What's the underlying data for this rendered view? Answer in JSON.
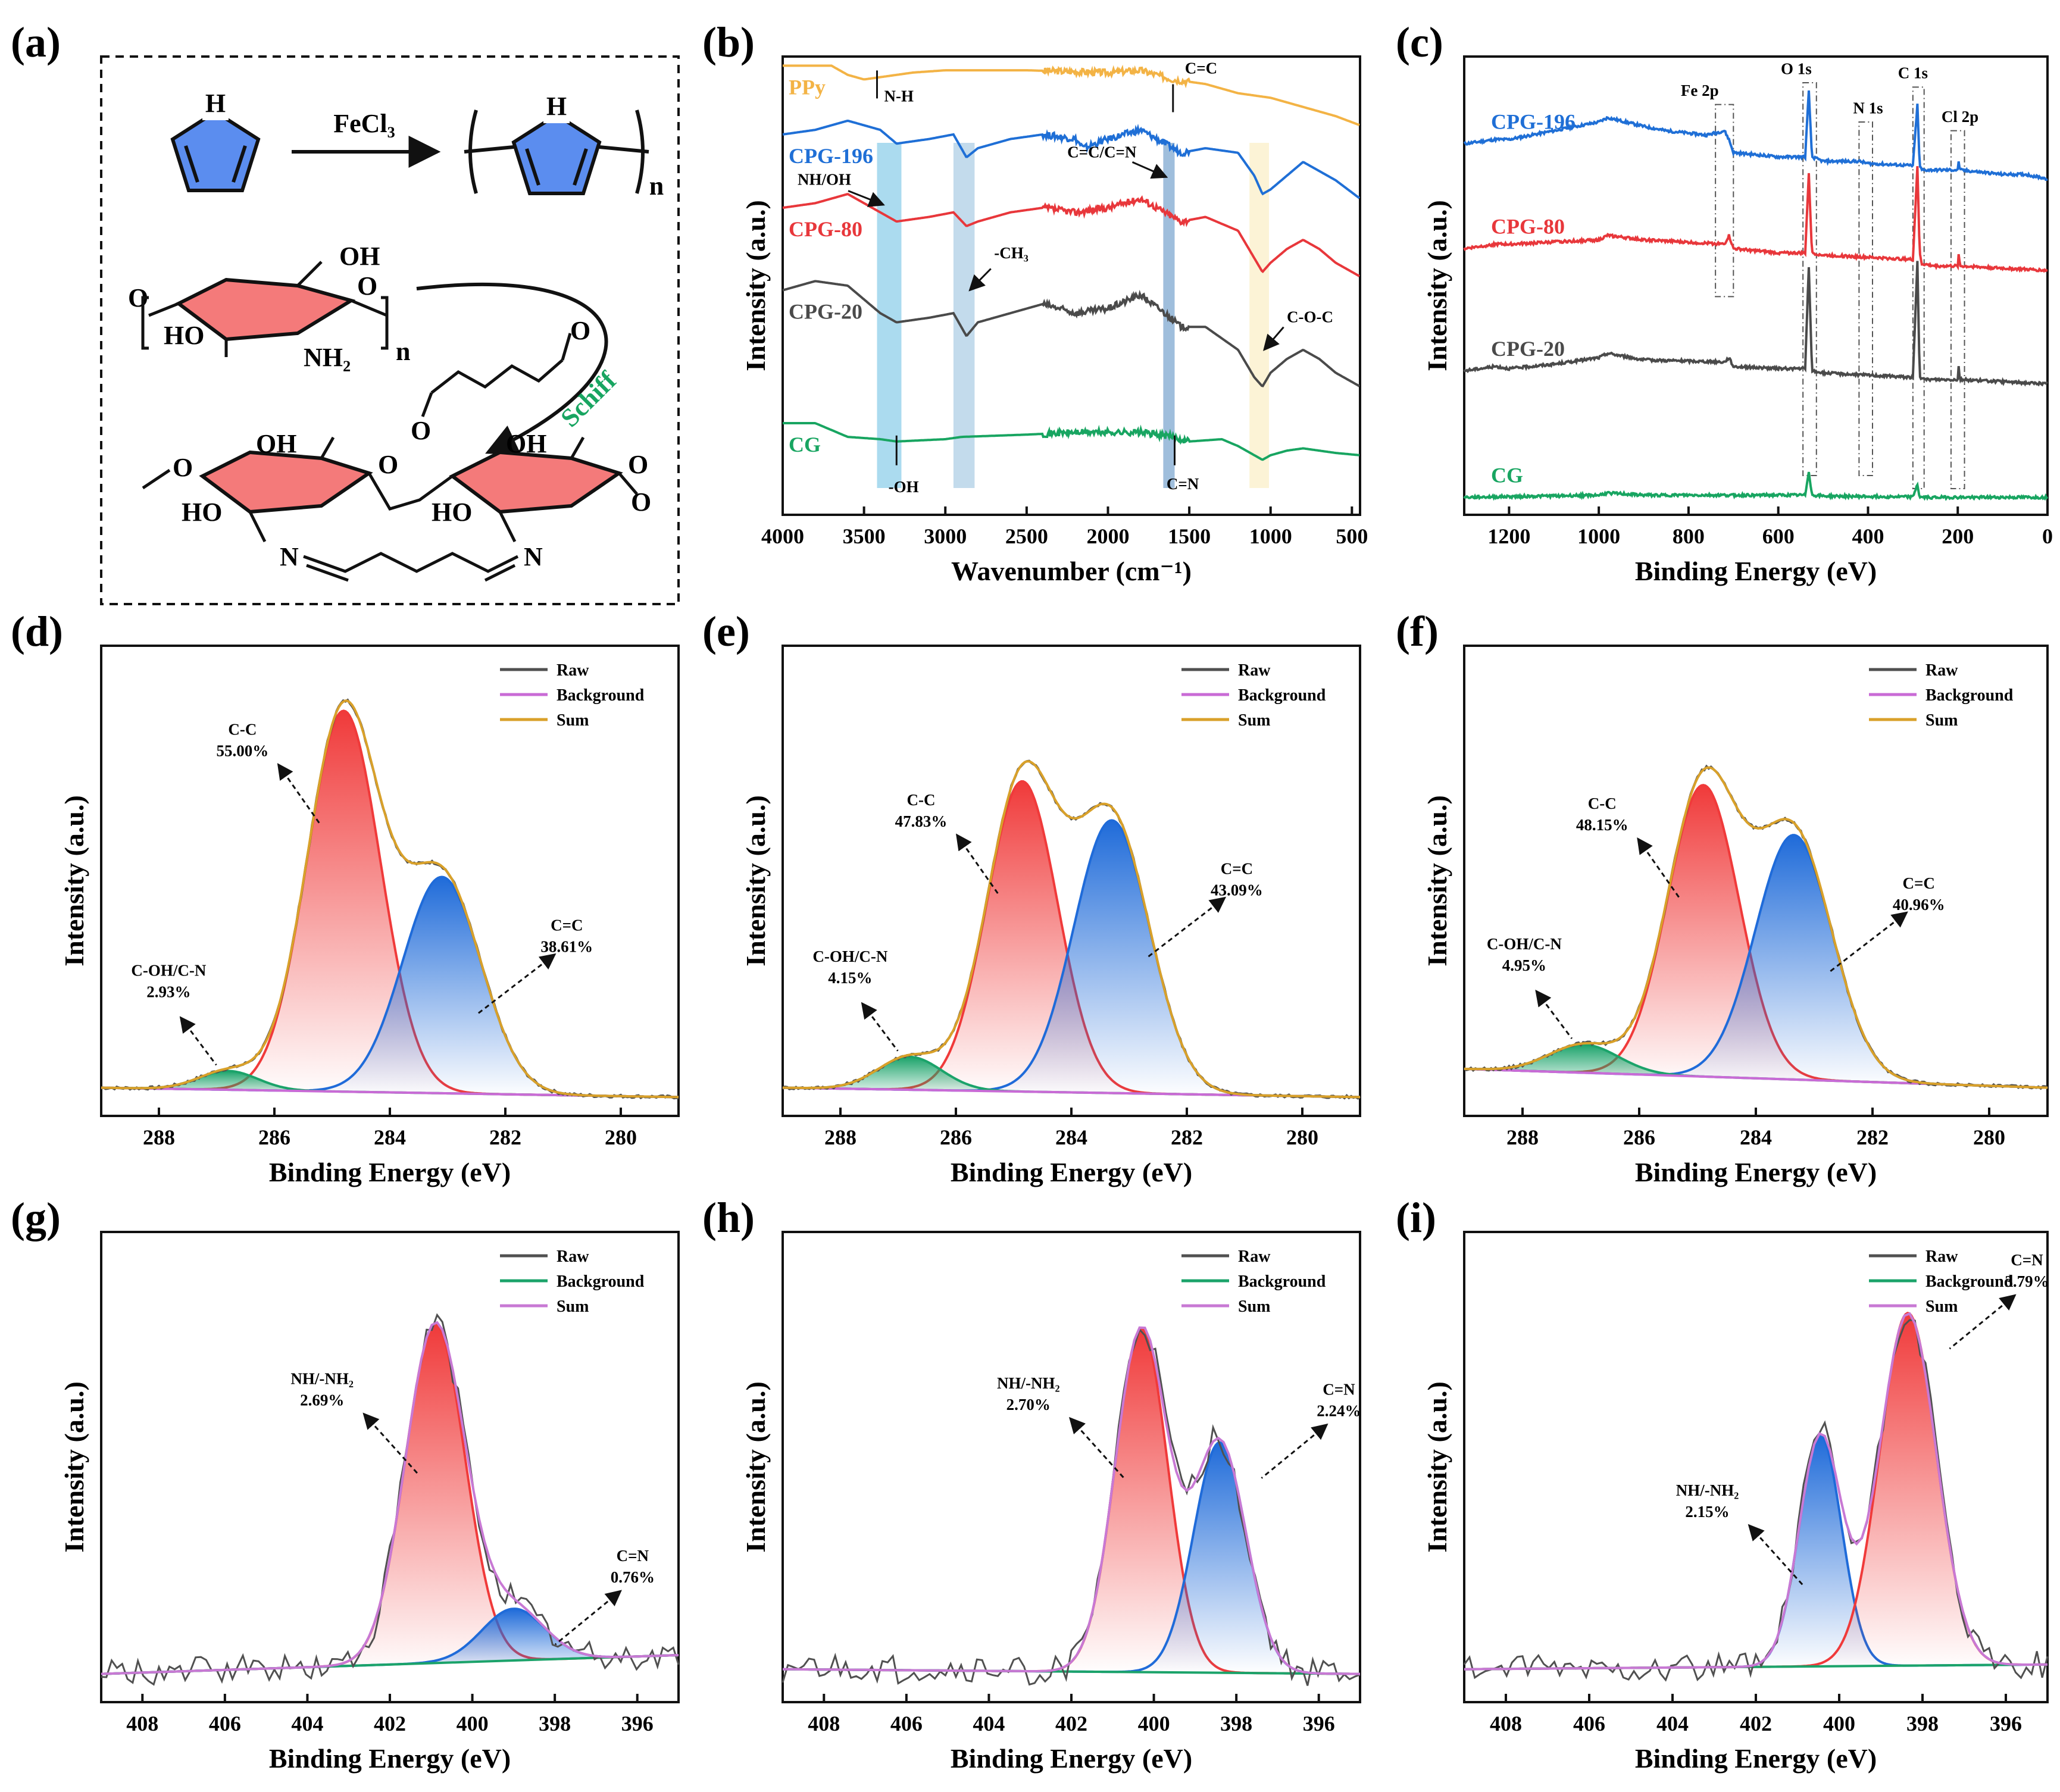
{
  "figure_labels": [
    "(a)",
    "(b)",
    "(c)",
    "(d)",
    "(e)",
    "(f)",
    "(g)",
    "(h)",
    "(i)"
  ],
  "scheme": {
    "reagent": "FeCl₃",
    "subscript_n": "n",
    "schiff": "Schiff",
    "atoms": {
      "H": "H",
      "O": "O",
      "OH": "OH",
      "HO": "HO",
      "NH2": "NH₂",
      "N": "N"
    }
  },
  "colors": {
    "ppy": "#F3B345",
    "cpg196": "#1F6FD6",
    "cpg80": "#E8373B",
    "cpg20": "#4A4A4A",
    "cg": "#18A561",
    "raw": "#505050",
    "background_cxps": "#C96BD6",
    "sum_cxps": "#D9A12A",
    "background_nxps": "#1BA36A",
    "sum_nxps": "#C879D4",
    "red_peak": "#F03A3A",
    "blue_peak": "#1F6BD9",
    "green_peak": "#1BA36A",
    "pyrrole": "#5B8DEF",
    "sugar": "#F47A7A"
  },
  "chart_data": [
    {
      "panel": "(b)",
      "type": "line",
      "xlabel": "Wavenumber (cm⁻¹)",
      "ylabel": "Intensity (a.u.)",
      "xlim": [
        4000,
        450
      ],
      "xticks": [
        "4000",
        "3500",
        "3000",
        "2500",
        "2000",
        "1500",
        "1000",
        "500"
      ],
      "series": [
        {
          "name": "PPy",
          "x": [
            4000,
            3700,
            3600,
            3500,
            3200,
            3000,
            2500,
            2000,
            1800,
            1600,
            1400,
            1200,
            1000,
            800,
            600,
            450
          ],
          "values": [
            98,
            98,
            96,
            95,
            96.5,
            97,
            97,
            96.5,
            97,
            95,
            94,
            92,
            91,
            89,
            87,
            85
          ]
        },
        {
          "name": "CPG-196",
          "x": [
            4000,
            3800,
            3600,
            3400,
            3300,
            3100,
            2950,
            2870,
            2800,
            2600,
            2400,
            2200,
            2150,
            2000,
            1800,
            1650,
            1550,
            1400,
            1200,
            1100,
            1050,
            1000,
            900,
            800,
            700,
            600,
            450
          ],
          "values": [
            83,
            84,
            86,
            84,
            81,
            82,
            83,
            78,
            80,
            82,
            83,
            82,
            80,
            82,
            84,
            81,
            79,
            80,
            79,
            74,
            70,
            71,
            74,
            77,
            75,
            73,
            69
          ]
        },
        {
          "name": "CPG-80",
          "x": [
            4000,
            3800,
            3600,
            3400,
            3300,
            3100,
            2950,
            2870,
            2800,
            2600,
            2400,
            2200,
            2000,
            1800,
            1650,
            1550,
            1400,
            1200,
            1100,
            1050,
            1000,
            900,
            800,
            700,
            600,
            450
          ],
          "values": [
            67,
            68,
            70,
            66,
            64,
            65,
            66,
            63,
            64,
            66,
            67,
            66,
            67,
            69,
            66,
            64,
            65,
            62,
            56,
            53,
            55,
            58,
            60,
            58,
            55,
            52
          ]
        },
        {
          "name": "CPG-20",
          "x": [
            4000,
            3800,
            3600,
            3400,
            3300,
            3100,
            2950,
            2870,
            2800,
            2600,
            2400,
            2200,
            2000,
            1800,
            1650,
            1550,
            1400,
            1200,
            1100,
            1050,
            1000,
            900,
            800,
            700,
            600,
            450
          ],
          "values": [
            49,
            51,
            50,
            44,
            42,
            43,
            44,
            39,
            42,
            44,
            46,
            44,
            45,
            48,
            44,
            41,
            41,
            36,
            30,
            28,
            31,
            34,
            36,
            34,
            31,
            28
          ]
        },
        {
          "name": "CG",
          "x": [
            4000,
            3800,
            3600,
            3400,
            3300,
            3000,
            2900,
            2500,
            2200,
            2000,
            1800,
            1600,
            1500,
            1300,
            1200,
            1100,
            1050,
            1000,
            900,
            800,
            700,
            600,
            450
          ],
          "values": [
            20,
            20,
            17,
            16.5,
            16,
            16.5,
            17,
            17.5,
            18,
            18,
            18,
            17,
            16,
            16.5,
            15,
            13,
            12,
            13,
            14,
            14.5,
            14,
            13.5,
            13
          ]
        }
      ],
      "series_labels": [
        "PPy",
        "CPG-196",
        "CPG-80",
        "CPG-20",
        "CG"
      ],
      "annotations": [
        "N-H",
        "C=C",
        "NH/OH",
        "C=C/C=N",
        "-CH₃",
        "C-O-C",
        "-OH",
        "C=N"
      ]
    },
    {
      "panel": "(c)",
      "type": "line",
      "xlabel": "Binding Energy (eV)",
      "ylabel": "Intensity (a.u.)",
      "xlim": [
        1300,
        0
      ],
      "xticks": [
        "1200",
        "1000",
        "800",
        "600",
        "400",
        "200",
        "0"
      ],
      "series": [
        {
          "name": "CPG-196",
          "x": [
            1300,
            1230,
            1200,
            1100,
            1000,
            980,
            900,
            850,
            760,
            720,
            710,
            700,
            600,
            540,
            532,
            525,
            500,
            420,
            400,
            300,
            290,
            285,
            280,
            250,
            200,
            198,
            195,
            100,
            50,
            0
          ],
          "values": [
            85,
            86,
            86,
            88,
            90,
            91,
            89,
            88,
            87,
            88,
            86,
            83,
            82,
            82,
            97,
            82,
            81,
            81,
            80.5,
            80,
            94,
            80,
            79,
            79,
            79,
            81,
            79,
            78,
            78,
            77
          ]
        },
        {
          "name": "CPG-80",
          "x": [
            1300,
            1230,
            1200,
            1100,
            1000,
            980,
            900,
            720,
            710,
            700,
            600,
            540,
            532,
            525,
            500,
            400,
            300,
            290,
            285,
            280,
            250,
            200,
            198,
            195,
            100,
            0
          ],
          "values": [
            61,
            62,
            62,
            62.5,
            63,
            64,
            63,
            62,
            64,
            61,
            60,
            60,
            78,
            60,
            59.5,
            59,
            58.5,
            80,
            60,
            57.5,
            57,
            57,
            60,
            57,
            56.5,
            56
          ]
        },
        {
          "name": "CPG-20",
          "x": [
            1300,
            1230,
            1200,
            1100,
            1000,
            980,
            900,
            720,
            710,
            700,
            600,
            540,
            532,
            525,
            500,
            400,
            300,
            290,
            285,
            280,
            250,
            200,
            198,
            195,
            100,
            0
          ],
          "values": [
            33,
            34,
            33.5,
            34.5,
            36,
            37,
            35.5,
            35,
            36,
            34,
            33.5,
            33.5,
            57,
            33,
            32.5,
            32,
            31.5,
            58,
            32,
            31,
            31,
            31,
            34,
            31,
            30.5,
            30
          ]
        },
        {
          "name": "CG",
          "x": [
            1300,
            1000,
            980,
            900,
            600,
            540,
            532,
            525,
            500,
            400,
            300,
            290,
            285,
            280,
            200,
            0
          ],
          "values": [
            4,
            4.5,
            5,
            4.5,
            4.5,
            4.5,
            10,
            4.5,
            4.3,
            4.2,
            4.1,
            7,
            4,
            4,
            4,
            4
          ]
        }
      ],
      "series_labels": [
        "CPG-196",
        "CPG-80",
        "CPG-20",
        "CG"
      ],
      "annotations": [
        "Fe 2p",
        "O 1s",
        "N 1s",
        "C 1s",
        "Cl 2p"
      ]
    },
    {
      "panel": "(d)",
      "type": "area",
      "xlabel": "Binding Energy (eV)",
      "ylabel": "Intensity (a.u.)",
      "xlim": [
        289,
        279
      ],
      "xticks": [
        "288",
        "286",
        "284",
        "282",
        "280"
      ],
      "legend": [
        "Raw",
        "Background",
        "Sum"
      ],
      "peaks": [
        {
          "name": "C-C",
          "percent": "55.00%",
          "center_eV": 284.8,
          "height": 0.81,
          "fwhm_eV": 1.5
        },
        {
          "name": "C=C",
          "percent": "38.61%",
          "center_eV": 283.1,
          "height": 0.46,
          "fwhm_eV": 1.6
        },
        {
          "name": "C-OH/C-N",
          "percent": "2.93%",
          "center_eV": 286.8,
          "height": 0.04,
          "fwhm_eV": 1.2
        }
      ],
      "background": [
        0.06,
        0.04
      ]
    },
    {
      "panel": "(e)",
      "type": "area",
      "xlabel": "Binding Energy (eV)",
      "ylabel": "Intensity (a.u.)",
      "xlim": [
        289,
        279
      ],
      "xticks": [
        "288",
        "286",
        "284",
        "282",
        "280"
      ],
      "legend": [
        "Raw",
        "Background",
        "Sum"
      ],
      "peaks": [
        {
          "name": "C-C",
          "percent": "47.83%",
          "center_eV": 284.85,
          "height": 0.66,
          "fwhm_eV": 1.45
        },
        {
          "name": "C=C",
          "percent": "43.09%",
          "center_eV": 283.3,
          "height": 0.58,
          "fwhm_eV": 1.55
        },
        {
          "name": "C-OH/C-N",
          "percent": "4.15%",
          "center_eV": 286.8,
          "height": 0.07,
          "fwhm_eV": 1.3
        }
      ],
      "background": [
        0.06,
        0.04
      ]
    },
    {
      "panel": "(f)",
      "type": "area",
      "xlabel": "Binding Energy (eV)",
      "ylabel": "Intensity (a.u.)",
      "xlim": [
        289,
        279
      ],
      "xticks": [
        "288",
        "286",
        "284",
        "282",
        "280"
      ],
      "legend": [
        "Raw",
        "Background",
        "Sum"
      ],
      "peaks": [
        {
          "name": "C-C",
          "percent": "48.15%",
          "center_eV": 284.9,
          "height": 0.62,
          "fwhm_eV": 1.45
        },
        {
          "name": "C=C",
          "percent": "40.96%",
          "center_eV": 283.35,
          "height": 0.52,
          "fwhm_eV": 1.55
        },
        {
          "name": "C-OH/C-N",
          "percent": "4.95%",
          "center_eV": 286.95,
          "height": 0.06,
          "fwhm_eV": 1.4
        }
      ],
      "background": [
        0.1,
        0.06
      ]
    },
    {
      "panel": "(g)",
      "type": "area",
      "xlabel": "Binding Energy (eV)",
      "ylabel": "Intensity (a.u.)",
      "xlim": [
        409,
        395
      ],
      "xticks": [
        "408",
        "406",
        "404",
        "402",
        "400",
        "398",
        "396"
      ],
      "legend": [
        "Raw",
        "Background",
        "Sum"
      ],
      "peaks": [
        {
          "name": "NH/-NH₂",
          "percent": "2.69%",
          "center_eV": 400.9,
          "height": 0.72,
          "fwhm_eV": 1.7
        },
        {
          "name": "C=N",
          "percent": "0.76%",
          "center_eV": 399.0,
          "height": 0.11,
          "fwhm_eV": 1.8
        }
      ],
      "background": [
        0.06,
        0.1
      ]
    },
    {
      "panel": "(h)",
      "type": "area",
      "xlabel": "Binding Energy (eV)",
      "ylabel": "Intensity (a.u.)",
      "xlim": [
        409,
        395
      ],
      "xticks": [
        "408",
        "406",
        "404",
        "402",
        "400",
        "398",
        "396"
      ],
      "legend": [
        "Raw",
        "Background",
        "Sum"
      ],
      "peaks": [
        {
          "name": "NH/-NH₂",
          "percent": "2.70%",
          "center_eV": 400.3,
          "height": 0.73,
          "fwhm_eV": 1.5
        },
        {
          "name": "C=N",
          "percent": "2.24%",
          "center_eV": 398.4,
          "height": 0.49,
          "fwhm_eV": 1.5
        }
      ],
      "background": [
        0.07,
        0.06
      ]
    },
    {
      "panel": "(i)",
      "type": "area",
      "xlabel": "Binding Energy (eV)",
      "ylabel": "Intensity (a.u.)",
      "xlim": [
        409,
        395
      ],
      "xticks": [
        "408",
        "406",
        "404",
        "402",
        "400",
        "398",
        "396"
      ],
      "legend": [
        "Raw",
        "Background",
        "Sum"
      ],
      "peaks": [
        {
          "name": "NH/-NH₂",
          "percent": "2.15%",
          "center_eV": 400.45,
          "height": 0.49,
          "fwhm_eV": 1.2
        },
        {
          "name": "C=N",
          "percent": "3.79%",
          "center_eV": 398.35,
          "height": 0.75,
          "fwhm_eV": 1.6
        }
      ],
      "background": [
        0.07,
        0.08
      ]
    }
  ]
}
